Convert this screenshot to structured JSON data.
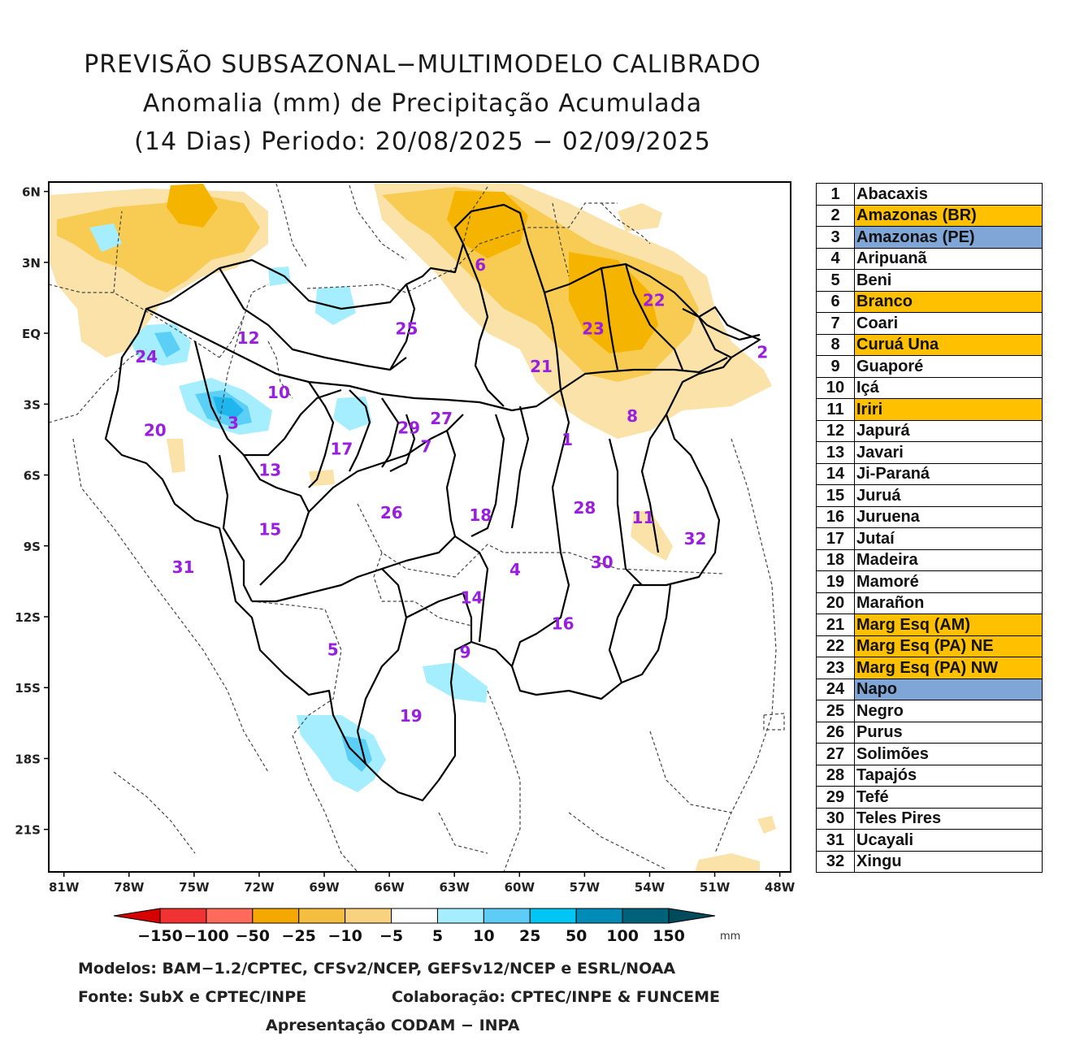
{
  "title": {
    "line1": "PREVISÃO SUBSAZONAL−MULTIMODELO CALIBRADO",
    "line2": "Anomalia (mm) de Precipitação Acumulada",
    "line3": "(14 Dias) Periodo: 20/08/2025 − 02/09/2025"
  },
  "map": {
    "lat_labels": [
      "6N",
      "3N",
      "EQ",
      "3S",
      "6S",
      "9S",
      "12S",
      "15S",
      "18S",
      "21S"
    ],
    "lon_labels": [
      "81W",
      "78W",
      "75W",
      "72W",
      "69W",
      "66W",
      "63W",
      "60W",
      "57W",
      "54W",
      "51W",
      "48W"
    ],
    "basin_labels": [
      {
        "id": "1",
        "lon": -57.8,
        "lat": -4.5
      },
      {
        "id": "2",
        "lon": -48.8,
        "lat": -0.8
      },
      {
        "id": "3",
        "lon": -73.2,
        "lat": -3.8
      },
      {
        "id": "4",
        "lon": -60.2,
        "lat": -10.0
      },
      {
        "id": "5",
        "lon": -68.6,
        "lat": -13.4
      },
      {
        "id": "6",
        "lon": -61.8,
        "lat": 2.9
      },
      {
        "id": "7",
        "lon": -64.3,
        "lat": -4.8
      },
      {
        "id": "8",
        "lon": -54.8,
        "lat": -3.5
      },
      {
        "id": "9",
        "lon": -62.5,
        "lat": -13.5
      },
      {
        "id": "10",
        "lon": -71.1,
        "lat": -2.5
      },
      {
        "id": "11",
        "lon": -54.3,
        "lat": -7.8
      },
      {
        "id": "12",
        "lon": -72.5,
        "lat": -0.2
      },
      {
        "id": "13",
        "lon": -71.5,
        "lat": -5.8
      },
      {
        "id": "14",
        "lon": -62.2,
        "lat": -11.2
      },
      {
        "id": "15",
        "lon": -71.5,
        "lat": -8.3
      },
      {
        "id": "16",
        "lon": -58.0,
        "lat": -12.3
      },
      {
        "id": "17",
        "lon": -68.2,
        "lat": -4.9
      },
      {
        "id": "18",
        "lon": -61.8,
        "lat": -7.7
      },
      {
        "id": "19",
        "lon": -65.0,
        "lat": -16.2
      },
      {
        "id": "20",
        "lon": -76.8,
        "lat": -4.1
      },
      {
        "id": "21",
        "lon": -59.0,
        "lat": -1.4
      },
      {
        "id": "22",
        "lon": -53.8,
        "lat": 1.4
      },
      {
        "id": "23",
        "lon": -56.6,
        "lat": 0.2
      },
      {
        "id": "24",
        "lon": -77.2,
        "lat": -1.0
      },
      {
        "id": "25",
        "lon": -65.2,
        "lat": 0.2
      },
      {
        "id": "26",
        "lon": -65.9,
        "lat": -7.6
      },
      {
        "id": "27",
        "lon": -63.6,
        "lat": -3.6
      },
      {
        "id": "28",
        "lon": -57.0,
        "lat": -7.4
      },
      {
        "id": "29",
        "lon": -65.1,
        "lat": -4.0
      },
      {
        "id": "30",
        "lon": -56.2,
        "lat": -9.7
      },
      {
        "id": "31",
        "lon": -75.5,
        "lat": -9.9
      },
      {
        "id": "32",
        "lon": -51.9,
        "lat": -8.7
      }
    ],
    "anomaly_areas": [
      {
        "category": "-25 to -50",
        "color": "#f5b400"
      },
      {
        "category": "-10 to -25",
        "color": "#f8cc53"
      },
      {
        "category": "-5 to -10",
        "color": "#fae2a8"
      },
      {
        "category": "5 to 10",
        "color": "#a5eeff"
      },
      {
        "category": "10 to 25",
        "color": "#5ccff7"
      },
      {
        "category": "25 to 50",
        "color": "#1fb6ee"
      }
    ]
  },
  "colorbar": {
    "labels": [
      "−150",
      "−100",
      "−50",
      "−25",
      "−10",
      "−5",
      "5",
      "10",
      "25",
      "50",
      "100",
      "150"
    ],
    "colors": [
      "#d50000",
      "#f13232",
      "#ff6a5b",
      "#f5a900",
      "#f6be3e",
      "#f8d27f",
      "#ffffff",
      "#a5eeff",
      "#5dcdf5",
      "#00c6f5",
      "#008cb7",
      "#00617b",
      "#004a5c"
    ],
    "unit": "mm"
  },
  "legend": [
    {
      "num": "1",
      "name": "Abacaxis",
      "color": "#ffffff"
    },
    {
      "num": "2",
      "name": "Amazonas (BR)",
      "color": "#ffc000"
    },
    {
      "num": "3",
      "name": "Amazonas (PE)",
      "color": "#7fa6d6"
    },
    {
      "num": "4",
      "name": "Aripuanã",
      "color": "#ffffff"
    },
    {
      "num": "5",
      "name": "Beni",
      "color": "#ffffff"
    },
    {
      "num": "6",
      "name": "Branco",
      "color": "#ffc000"
    },
    {
      "num": "7",
      "name": "Coari",
      "color": "#ffffff"
    },
    {
      "num": "8",
      "name": "Curuá Una",
      "color": "#ffc000"
    },
    {
      "num": "9",
      "name": "Guaporé",
      "color": "#ffffff"
    },
    {
      "num": "10",
      "name": "Içá",
      "color": "#ffffff"
    },
    {
      "num": "11",
      "name": "Iriri",
      "color": "#ffc000"
    },
    {
      "num": "12",
      "name": "Japurá",
      "color": "#ffffff"
    },
    {
      "num": "13",
      "name": "Javari",
      "color": "#ffffff"
    },
    {
      "num": "14",
      "name": "Ji-Paraná",
      "color": "#ffffff"
    },
    {
      "num": "15",
      "name": "Juruá",
      "color": "#ffffff"
    },
    {
      "num": "16",
      "name": "Juruena",
      "color": "#ffffff"
    },
    {
      "num": "17",
      "name": "Jutaí",
      "color": "#ffffff"
    },
    {
      "num": "18",
      "name": "Madeira",
      "color": "#ffffff"
    },
    {
      "num": "19",
      "name": "Mamoré",
      "color": "#ffffff"
    },
    {
      "num": "20",
      "name": "Marañon",
      "color": "#ffffff"
    },
    {
      "num": "21",
      "name": "Marg Esq (AM)",
      "color": "#ffc000"
    },
    {
      "num": "22",
      "name": "Marg Esq (PA) NE",
      "color": "#ffc000"
    },
    {
      "num": "23",
      "name": "Marg Esq (PA) NW",
      "color": "#ffc000"
    },
    {
      "num": "24",
      "name": "Napo",
      "color": "#7fa6d6"
    },
    {
      "num": "25",
      "name": "Negro",
      "color": "#ffffff"
    },
    {
      "num": "26",
      "name": "Purus",
      "color": "#ffffff"
    },
    {
      "num": "27",
      "name": "Solimões",
      "color": "#ffffff"
    },
    {
      "num": "28",
      "name": "Tapajós",
      "color": "#ffffff"
    },
    {
      "num": "29",
      "name": "Tefé",
      "color": "#ffffff"
    },
    {
      "num": "30",
      "name": "Teles Pires",
      "color": "#ffffff"
    },
    {
      "num": "31",
      "name": "Ucayali",
      "color": "#ffffff"
    },
    {
      "num": "32",
      "name": "Xingu",
      "color": "#ffffff"
    }
  ],
  "footer": {
    "models": "Modelos: BAM−1.2/CPTEC, CFSv2/NCEP, GEFSv12/NCEP e ESRL/NOAA",
    "source": "Fonte: SubX e CPTEC/INPE",
    "collab": "Colaboração: CPTEC/INPE & FUNCEME",
    "presentation": "Apresentação CODAM − INPA"
  }
}
